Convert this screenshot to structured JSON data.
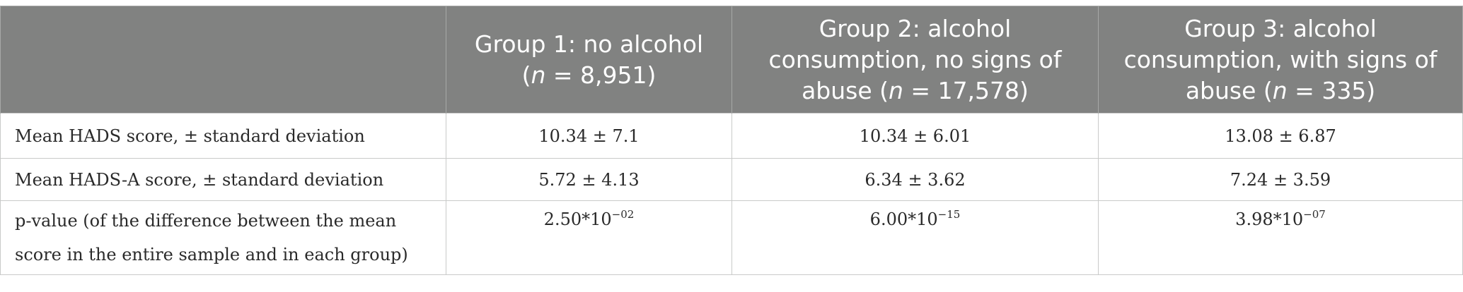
{
  "table": {
    "header": {
      "corner": "",
      "col1_line1": "Group 1: no alcohol",
      "col1_n_prefix": "(",
      "col1_n_symbol": "n",
      "col1_n_rest": " = 8,951)",
      "col2_line1": "Group 2: alcohol consumption, no signs of abuse (",
      "col2_n_symbol": "n",
      "col2_n_rest": " = 17,578)",
      "col3_line1": "Group 3: alcohol consumption, with signs of abuse (",
      "col3_n_symbol": "n",
      "col3_n_rest": " = 335)"
    },
    "rows": [
      {
        "label": "Mean HADS score, ± standard deviation",
        "g1": "10.34 ± 7.1",
        "g2": "10.34 ± 6.01",
        "g3": "13.08 ± 6.87"
      },
      {
        "label": "Mean HADS-A score, ± standard deviation",
        "g1": "5.72 ± 4.13",
        "g2": "6.34 ± 3.62",
        "g3": "7.24 ± 3.59"
      },
      {
        "label": "p-value (of the difference between the mean score in the entire sample and in each group)",
        "g1_base": "2.50*10",
        "g1_exp": "−02",
        "g2_base": "6.00*10",
        "g2_exp": "−15",
        "g3_base": "3.98*10",
        "g3_exp": "−07"
      }
    ]
  }
}
